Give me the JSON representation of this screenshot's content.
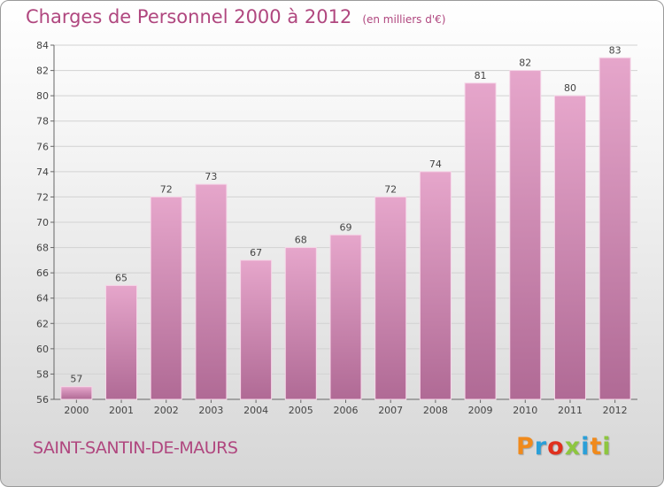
{
  "header": {
    "title": "Charges de Personnel 2000 à 2012",
    "subtitle": "(en milliers d'€)"
  },
  "footer": {
    "commune": "SAINT-SANTIN-DE-MAURS",
    "brand": "Proxiti",
    "brand_colors": [
      "#f08a1c",
      "#2a9fd8",
      "#e0301e",
      "#8dc63f",
      "#2a9fd8",
      "#f08a1c",
      "#8dc63f"
    ]
  },
  "colors": {
    "bar_top": "#e6a6cb",
    "bar_bottom": "#b06a95",
    "bar_edge": "#f6d6e8",
    "accent": "#b0477f"
  },
  "chart_data": {
    "type": "bar",
    "categories": [
      "2000",
      "2001",
      "2002",
      "2003",
      "2004",
      "2005",
      "2006",
      "2007",
      "2008",
      "2009",
      "2010",
      "2011",
      "2012"
    ],
    "values": [
      57,
      65,
      72,
      73,
      67,
      68,
      69,
      72,
      74,
      81,
      82,
      80,
      83
    ],
    "title": "Charges de Personnel 2000 à 2012",
    "subtitle": "(en milliers d'€)",
    "xlabel": "",
    "ylabel": "",
    "ylim": [
      56,
      84
    ],
    "yticks": [
      56,
      58,
      60,
      62,
      64,
      66,
      68,
      70,
      72,
      74,
      76,
      78,
      80,
      82,
      84
    ],
    "grid": true,
    "legend": "none"
  }
}
